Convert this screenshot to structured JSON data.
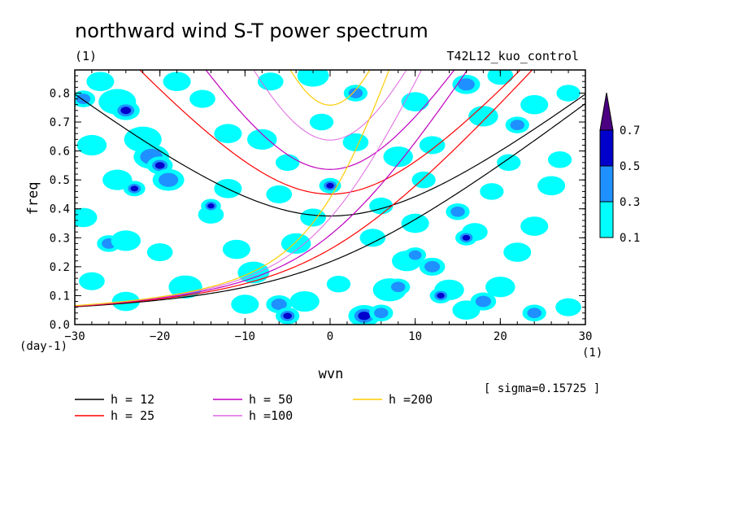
{
  "chart_data": {
    "type": "heatmap",
    "title": "northward wind S-T power spectrum",
    "title_left_unit": "(1)",
    "title_right_label": "T42L12_kuo_control",
    "xlabel": "wvn",
    "ylabel": "freq",
    "x_unit_label": "(1)",
    "y_unit_label": "(day-1)",
    "xlim": [
      -30,
      30
    ],
    "ylim": [
      0.0,
      0.88
    ],
    "x_ticks": [
      -30,
      -20,
      -10,
      0,
      10,
      20,
      30
    ],
    "y_ticks": [
      0.0,
      0.1,
      0.2,
      0.3,
      0.4,
      0.5,
      0.6,
      0.7,
      0.8
    ],
    "note": "[ sigma=0.15725 ]",
    "colorbar": {
      "levels": [
        0.1,
        0.3,
        0.5,
        0.7
      ],
      "labels": [
        "0.1",
        "0.3",
        "0.5",
        "0.7"
      ],
      "colors": [
        "#00ffff",
        "#1e90ff",
        "#0000cd",
        "#4b0082"
      ]
    },
    "contour_levels": [
      {
        "level": 0.1,
        "color": "#00ffff"
      },
      {
        "level": 0.3,
        "color": "#1e90ff"
      },
      {
        "level": 0.5,
        "color": "#0000cd"
      },
      {
        "level": 0.7,
        "color": "#4b0082"
      }
    ],
    "blobs": [
      {
        "x": -29,
        "y": 0.78,
        "r": 0.8,
        "level": 0.3
      },
      {
        "x": -27,
        "y": 0.84,
        "r": 1.0,
        "level": 0.1
      },
      {
        "x": -25,
        "y": 0.77,
        "r": 1.5,
        "level": 0.1
      },
      {
        "x": -24,
        "y": 0.74,
        "r": 1.0,
        "level": 0.5
      },
      {
        "x": -22,
        "y": 0.64,
        "r": 1.5,
        "level": 0.1
      },
      {
        "x": -21,
        "y": 0.58,
        "r": 1.4,
        "level": 0.3
      },
      {
        "x": -20,
        "y": 0.55,
        "r": 0.9,
        "level": 0.5
      },
      {
        "x": -19,
        "y": 0.5,
        "r": 1.2,
        "level": 0.3
      },
      {
        "x": -25,
        "y": 0.5,
        "r": 1.1,
        "level": 0.1
      },
      {
        "x": -23,
        "y": 0.47,
        "r": 0.7,
        "level": 0.5
      },
      {
        "x": -26,
        "y": 0.28,
        "r": 0.8,
        "level": 0.3
      },
      {
        "x": -24,
        "y": 0.29,
        "r": 1.1,
        "level": 0.1
      },
      {
        "x": -28,
        "y": 0.62,
        "r": 1.1,
        "level": 0.1
      },
      {
        "x": -14,
        "y": 0.38,
        "r": 0.9,
        "level": 0.1
      },
      {
        "x": -14,
        "y": 0.41,
        "r": 0.6,
        "level": 0.5
      },
      {
        "x": -12,
        "y": 0.47,
        "r": 1.0,
        "level": 0.1
      },
      {
        "x": -11,
        "y": 0.26,
        "r": 1.0,
        "level": 0.1
      },
      {
        "x": -17,
        "y": 0.13,
        "r": 1.3,
        "level": 0.1
      },
      {
        "x": -9,
        "y": 0.18,
        "r": 1.2,
        "level": 0.1
      },
      {
        "x": -6,
        "y": 0.07,
        "r": 0.9,
        "level": 0.3
      },
      {
        "x": -5,
        "y": 0.03,
        "r": 0.8,
        "level": 0.5
      },
      {
        "x": -3,
        "y": 0.08,
        "r": 1.1,
        "level": 0.1
      },
      {
        "x": -4,
        "y": 0.28,
        "r": 1.1,
        "level": 0.1
      },
      {
        "x": -6,
        "y": 0.45,
        "r": 0.9,
        "level": 0.1
      },
      {
        "x": -2,
        "y": 0.86,
        "r": 1.2,
        "level": 0.1
      },
      {
        "x": -1,
        "y": 0.7,
        "r": 0.8,
        "level": 0.1
      },
      {
        "x": 0,
        "y": 0.48,
        "r": 0.7,
        "level": 0.5
      },
      {
        "x": 3,
        "y": 0.63,
        "r": 0.9,
        "level": 0.1
      },
      {
        "x": 3,
        "y": 0.8,
        "r": 0.8,
        "level": 0.3
      },
      {
        "x": 4,
        "y": 0.03,
        "r": 1.2,
        "level": 0.5
      },
      {
        "x": 6,
        "y": 0.04,
        "r": 0.8,
        "level": 0.3
      },
      {
        "x": 7,
        "y": 0.12,
        "r": 1.3,
        "level": 0.1
      },
      {
        "x": 8,
        "y": 0.13,
        "r": 0.8,
        "level": 0.3
      },
      {
        "x": 9,
        "y": 0.22,
        "r": 1.1,
        "level": 0.1
      },
      {
        "x": 10,
        "y": 0.24,
        "r": 0.7,
        "level": 0.3
      },
      {
        "x": 12,
        "y": 0.2,
        "r": 0.9,
        "level": 0.3
      },
      {
        "x": 14,
        "y": 0.12,
        "r": 1.1,
        "level": 0.1
      },
      {
        "x": 13,
        "y": 0.1,
        "r": 0.7,
        "level": 0.5
      },
      {
        "x": 16,
        "y": 0.05,
        "r": 1.0,
        "level": 0.1
      },
      {
        "x": 18,
        "y": 0.08,
        "r": 0.9,
        "level": 0.3
      },
      {
        "x": 20,
        "y": 0.13,
        "r": 1.1,
        "level": 0.1
      },
      {
        "x": 22,
        "y": 0.25,
        "r": 1.0,
        "level": 0.1
      },
      {
        "x": 17,
        "y": 0.32,
        "r": 0.9,
        "level": 0.1
      },
      {
        "x": 16,
        "y": 0.3,
        "r": 0.7,
        "level": 0.5
      },
      {
        "x": 15,
        "y": 0.39,
        "r": 0.8,
        "level": 0.3
      },
      {
        "x": 10,
        "y": 0.35,
        "r": 1.0,
        "level": 0.1
      },
      {
        "x": 5,
        "y": 0.3,
        "r": 0.9,
        "level": 0.1
      },
      {
        "x": 18,
        "y": 0.72,
        "r": 1.1,
        "level": 0.1
      },
      {
        "x": 16,
        "y": 0.83,
        "r": 1.0,
        "level": 0.3
      },
      {
        "x": 20,
        "y": 0.86,
        "r": 0.9,
        "level": 0.1
      },
      {
        "x": 26,
        "y": 0.48,
        "r": 1.0,
        "level": 0.1
      },
      {
        "x": 27,
        "y": 0.57,
        "r": 0.8,
        "level": 0.1
      },
      {
        "x": 24,
        "y": 0.34,
        "r": 1.0,
        "level": 0.1
      },
      {
        "x": 28,
        "y": 0.06,
        "r": 0.9,
        "level": 0.1
      },
      {
        "x": 24,
        "y": 0.04,
        "r": 0.8,
        "level": 0.3
      },
      {
        "x": 10,
        "y": 0.77,
        "r": 1.0,
        "level": 0.1
      },
      {
        "x": 8,
        "y": 0.58,
        "r": 1.1,
        "level": 0.1
      },
      {
        "x": 12,
        "y": 0.62,
        "r": 0.9,
        "level": 0.1
      },
      {
        "x": -8,
        "y": 0.64,
        "r": 1.1,
        "level": 0.1
      },
      {
        "x": -12,
        "y": 0.66,
        "r": 1.0,
        "level": 0.1
      },
      {
        "x": -15,
        "y": 0.78,
        "r": 0.9,
        "level": 0.1
      },
      {
        "x": -18,
        "y": 0.84,
        "r": 1.0,
        "level": 0.1
      },
      {
        "x": -7,
        "y": 0.84,
        "r": 0.9,
        "level": 0.1
      },
      {
        "x": 22,
        "y": 0.69,
        "r": 0.8,
        "level": 0.3
      },
      {
        "x": 24,
        "y": 0.76,
        "r": 1.0,
        "level": 0.1
      },
      {
        "x": 28,
        "y": 0.8,
        "r": 0.8,
        "level": 0.1
      },
      {
        "x": -28,
        "y": 0.15,
        "r": 0.9,
        "level": 0.1
      },
      {
        "x": -24,
        "y": 0.08,
        "r": 1.0,
        "level": 0.1
      },
      {
        "x": -29,
        "y": 0.37,
        "r": 1.0,
        "level": 0.1
      },
      {
        "x": -20,
        "y": 0.25,
        "r": 0.9,
        "level": 0.1
      },
      {
        "x": -2,
        "y": 0.37,
        "r": 0.9,
        "level": 0.1
      },
      {
        "x": -5,
        "y": 0.56,
        "r": 0.8,
        "level": 0.1
      },
      {
        "x": 6,
        "y": 0.41,
        "r": 0.8,
        "level": 0.1
      },
      {
        "x": 11,
        "y": 0.5,
        "r": 0.8,
        "level": 0.1
      },
      {
        "x": 19,
        "y": 0.46,
        "r": 0.8,
        "level": 0.1
      },
      {
        "x": 21,
        "y": 0.56,
        "r": 0.8,
        "level": 0.1
      },
      {
        "x": -10,
        "y": 0.07,
        "r": 1.0,
        "level": 0.1
      },
      {
        "x": 1,
        "y": 0.14,
        "r": 0.8,
        "level": 0.1
      }
    ],
    "series": [
      {
        "name": "h = 12",
        "h": 12,
        "color": "#000000",
        "kind": "sym"
      },
      {
        "name": "h = 25",
        "h": 25,
        "color": "#ff0000",
        "kind": "sym"
      },
      {
        "name": "h = 50",
        "h": 50,
        "color": "#c000c0",
        "kind": "sym"
      },
      {
        "name": "h =100",
        "h": 100,
        "color": "#e066e0",
        "kind": "sym"
      },
      {
        "name": "h =200",
        "h": 200,
        "color": "#ffcc00",
        "kind": "sym"
      }
    ]
  }
}
